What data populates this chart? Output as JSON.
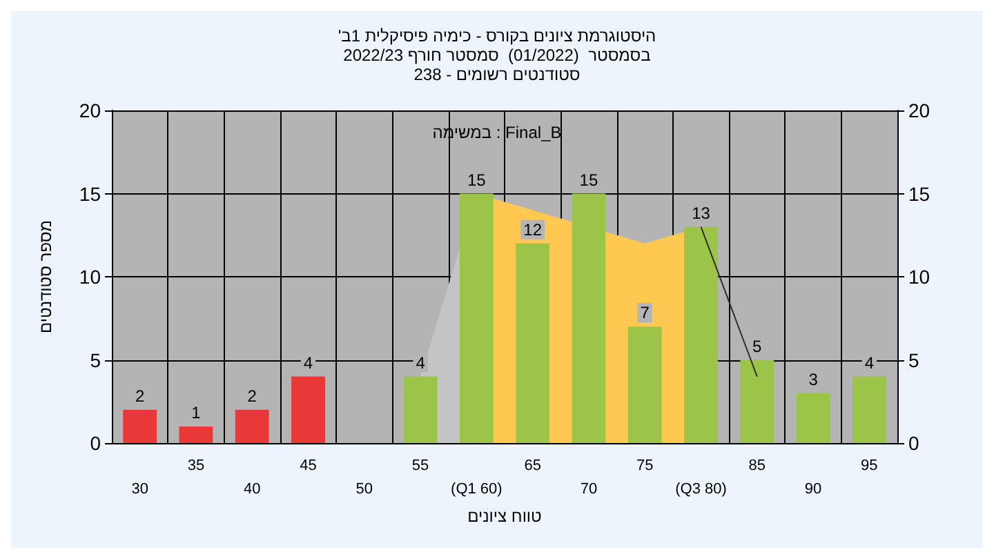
{
  "chart_data": {
    "type": "bar",
    "title": "'היסטוגרמת ציונים בקורס - כימיה פיסיקלית 1ב\nבסמסטר  (01/2022)  סמסטר חורף 2022/23\nסטודנטים רשומים - 238",
    "xlabel": "טווח ציונים",
    "ylabel": "מספר סטודנטים",
    "annotations": [
      "במשימה : Final_B"
    ],
    "categories": [
      "30",
      "35",
      "40",
      "45",
      "50",
      "55",
      "(Q1 60)",
      "65",
      "70",
      "75",
      "(Q3 80)",
      "85",
      "90",
      "95"
    ],
    "series": [
      {
        "type": "area",
        "color": "#c4c4c4",
        "values": [
          null,
          null,
          null,
          null,
          null,
          4,
          15,
          null,
          null,
          null,
          null,
          null,
          null,
          null
        ]
      },
      {
        "type": "area",
        "color": "#ffc850",
        "values": [
          null,
          null,
          null,
          null,
          null,
          null,
          15,
          14,
          null,
          12,
          13,
          null,
          null,
          null
        ]
      },
      {
        "type": "line",
        "color": "#303030",
        "values": [
          null,
          null,
          null,
          null,
          null,
          null,
          null,
          null,
          null,
          null,
          13,
          4,
          null,
          null
        ]
      },
      {
        "colors": [
          "#e83838",
          "#e83838",
          "#e83838",
          "#e83838",
          null,
          "#9cc448",
          "#9cc448",
          "#9cc448",
          "#9cc448",
          "#9cc448",
          "#9cc448",
          "#9cc448",
          "#9cc448",
          "#9cc448"
        ],
        "values": [
          2,
          1,
          2,
          4,
          null,
          4,
          15,
          12,
          15,
          7,
          13,
          5,
          3,
          4
        ],
        "data_labels": true
      }
    ],
    "ylim": [
      0,
      20
    ],
    "yticks": [
      0,
      5,
      10,
      15,
      20
    ],
    "y2lim": [
      0,
      20
    ],
    "y2ticks": [
      0,
      5,
      10,
      15,
      20
    ],
    "grid": true
  }
}
